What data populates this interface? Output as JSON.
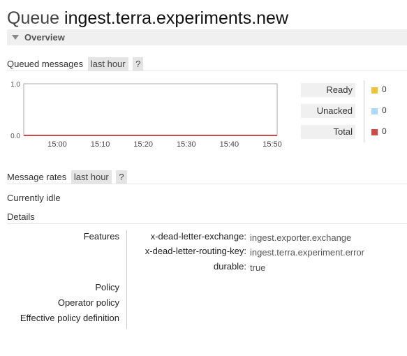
{
  "header": {
    "title_prefix": "Queue",
    "queue_name": "ingest.terra.experiments.new"
  },
  "overview": {
    "label": "Overview"
  },
  "queued_messages": {
    "label": "Queued messages",
    "range": "last hour",
    "help": "?",
    "chart_data": {
      "type": "line",
      "x": [
        "15:00",
        "15:10",
        "15:20",
        "15:30",
        "15:40",
        "15:50"
      ],
      "ylim": [
        0.0,
        1.0
      ],
      "ytick_labels": [
        "1.0",
        "0.0"
      ],
      "series": [
        {
          "name": "Ready",
          "values": [
            0,
            0,
            0,
            0,
            0,
            0
          ],
          "color": "#edc240"
        },
        {
          "name": "Unacked",
          "values": [
            0,
            0,
            0,
            0,
            0,
            0
          ],
          "color": "#afd8f8"
        },
        {
          "name": "Total",
          "values": [
            0,
            0,
            0,
            0,
            0,
            0
          ],
          "color": "#cb4b4b"
        }
      ]
    },
    "legend": [
      {
        "label": "Ready",
        "value": "0",
        "color": "#edc240"
      },
      {
        "label": "Unacked",
        "value": "0",
        "color": "#afd8f8"
      },
      {
        "label": "Total",
        "value": "0",
        "color": "#cb4b4b"
      }
    ]
  },
  "message_rates": {
    "label": "Message rates",
    "range": "last hour",
    "help": "?",
    "status": "Currently idle"
  },
  "details": {
    "label": "Details",
    "features_label": "Features",
    "features": [
      {
        "key": "x-dead-letter-exchange:",
        "value": "ingest.exporter.exchange"
      },
      {
        "key": "x-dead-letter-routing-key:",
        "value": "ingest.terra.experiment.error"
      },
      {
        "key": "durable:",
        "value": "true"
      }
    ],
    "policy_label": "Policy",
    "operator_policy_label": "Operator policy",
    "effective_policy_label": "Effective policy definition"
  }
}
